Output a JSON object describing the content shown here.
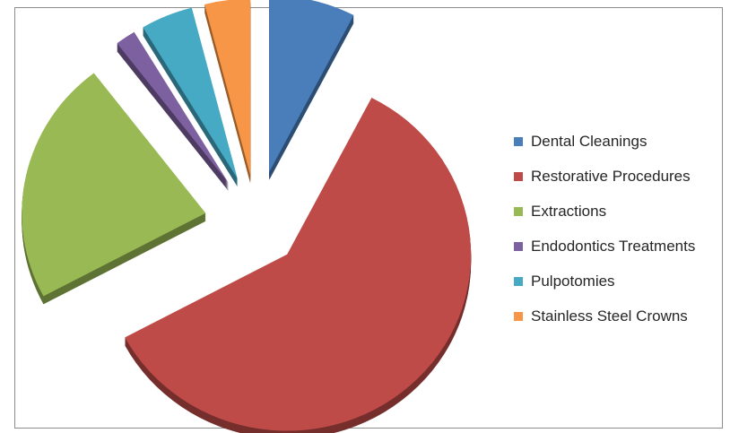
{
  "chart_data": {
    "type": "pie",
    "exploded": true,
    "three_d": true,
    "legend_position": "right",
    "categories": [
      "Dental Cleanings",
      "Restorative Procedures",
      "Extractions",
      "Endodontics Treatments",
      "Pulpotomies",
      "Stainless Steel Crowns"
    ],
    "values": [
      7.6,
      59.6,
      22.4,
      1.8,
      4.6,
      4.0
    ],
    "colors": [
      "#4a7ebb",
      "#be4b48",
      "#98b954",
      "#7d60a0",
      "#46aac5",
      "#f79646"
    ],
    "legend": [
      {
        "label": "Dental Cleanings",
        "color": "#4a7ebb"
      },
      {
        "label": "Restorative Procedures",
        "color": "#be4b48"
      },
      {
        "label": "Extractions",
        "color": "#98b954"
      },
      {
        "label": "Endodontics Treatments",
        "color": "#7d60a0"
      },
      {
        "label": "Pulpotomies",
        "color": "#46aac5"
      },
      {
        "label": "Stainless Steel Crowns",
        "color": "#f79646"
      }
    ]
  }
}
